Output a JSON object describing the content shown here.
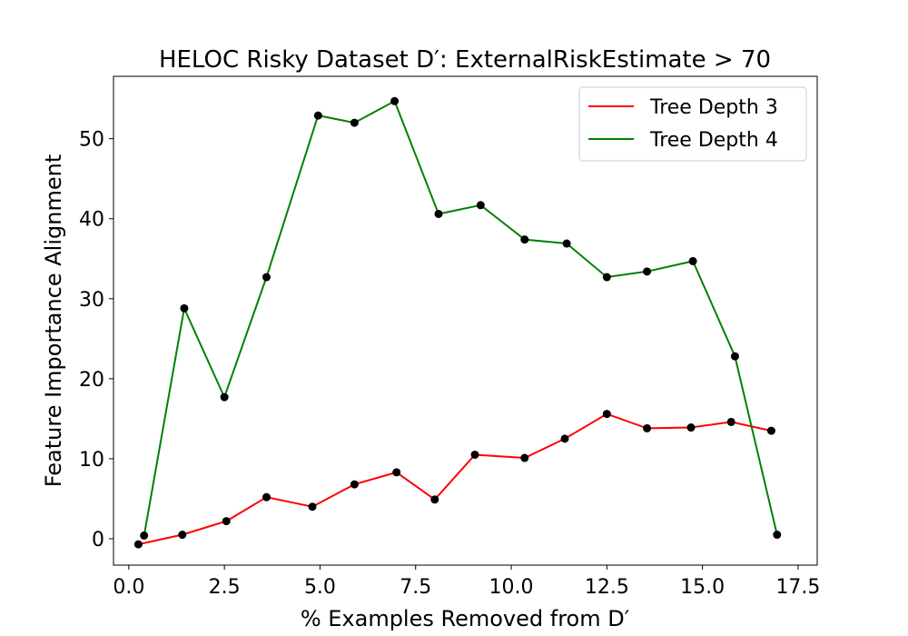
{
  "chart_data": {
    "type": "line",
    "title": "HELOC Risky Dataset D′: ExternalRiskEstimate > 70",
    "xlabel": "% Examples Removed from D′",
    "ylabel": "Feature Importance Alignment",
    "xlim": [
      -0.4,
      18.0
    ],
    "ylim": [
      -3.3,
      57.8
    ],
    "xticks": [
      0.0,
      2.5,
      5.0,
      7.5,
      10.0,
      12.5,
      15.0,
      17.5
    ],
    "xtick_labels": [
      "0.0",
      "2.5",
      "5.0",
      "7.5",
      "10.0",
      "12.5",
      "15.0",
      "17.5"
    ],
    "yticks": [
      0,
      10,
      20,
      30,
      40,
      50
    ],
    "ytick_labels": [
      "0",
      "10",
      "20",
      "30",
      "40",
      "50"
    ],
    "grid": false,
    "legend_position": "top-right",
    "marker_color": "#000000",
    "series": [
      {
        "name": "Tree Depth 3",
        "color": "#ff0000",
        "x": [
          0.25,
          1.4,
          2.55,
          3.6,
          4.8,
          5.9,
          7.0,
          8.0,
          9.05,
          10.35,
          11.4,
          12.5,
          13.55,
          14.7,
          15.75,
          16.8
        ],
        "y": [
          -0.7,
          0.5,
          2.2,
          5.2,
          4.0,
          6.8,
          8.3,
          4.9,
          10.5,
          10.1,
          12.5,
          15.6,
          13.8,
          13.9,
          14.6,
          13.5
        ]
      },
      {
        "name": "Tree Depth 4",
        "color": "#008000",
        "x": [
          0.4,
          1.45,
          2.5,
          3.6,
          4.95,
          5.9,
          6.95,
          8.1,
          9.2,
          10.35,
          11.45,
          12.5,
          13.55,
          14.75,
          15.85,
          16.95
        ],
        "y": [
          0.4,
          28.8,
          17.7,
          32.7,
          52.9,
          52.0,
          54.7,
          40.6,
          41.7,
          37.4,
          36.9,
          32.7,
          33.4,
          34.7,
          22.8,
          0.5
        ]
      }
    ]
  }
}
